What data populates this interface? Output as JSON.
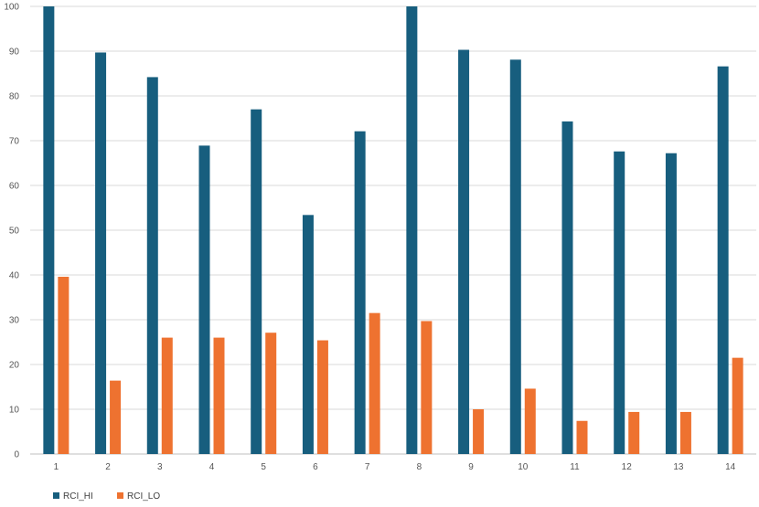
{
  "chart_data": {
    "type": "bar",
    "categories": [
      "1",
      "2",
      "3",
      "4",
      "5",
      "6",
      "7",
      "8",
      "9",
      "10",
      "11",
      "12",
      "13",
      "14"
    ],
    "series": [
      {
        "name": "RCI_HI",
        "color": "#175E7E",
        "values": [
          100,
          89.7,
          84.2,
          68.9,
          77.0,
          53.4,
          72.1,
          100,
          90.3,
          88.1,
          74.3,
          67.6,
          67.2,
          86.6
        ]
      },
      {
        "name": "RCI_LO",
        "color": "#EE7230",
        "values": [
          39.6,
          16.4,
          26.0,
          26.0,
          27.1,
          25.4,
          31.5,
          29.7,
          10.0,
          14.6,
          7.4,
          9.4,
          9.4,
          21.5
        ]
      }
    ],
    "yticks": [
      "0",
      "10",
      "20",
      "30",
      "40",
      "50",
      "60",
      "70",
      "80",
      "90",
      "100"
    ],
    "ylim": [
      0,
      100
    ],
    "grid": true,
    "gridColor": "#d9d9d9",
    "legend": "bottom-left"
  }
}
